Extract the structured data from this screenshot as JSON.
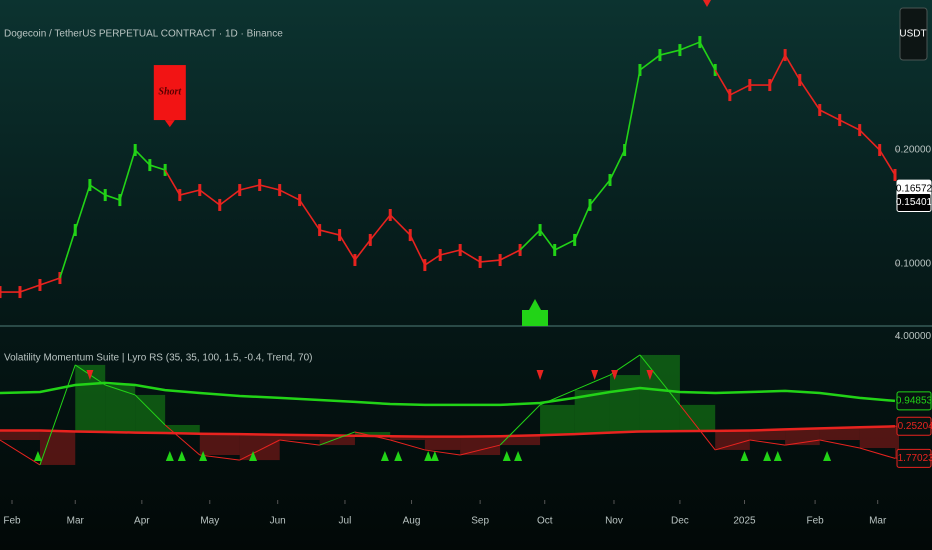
{
  "header": {
    "title": "Dogecoin / TetherUS PERPETUAL CONTRACT · 1D · Binance",
    "currency_button": "USDT"
  },
  "chart_data": [
    {
      "type": "candle-line",
      "x": [
        -0.18,
        0.12,
        0.42,
        0.72,
        0.95,
        1.17,
        1.4,
        1.62,
        1.85,
        2.07,
        2.3,
        2.52,
        2.82,
        3.12,
        3.42,
        3.72,
        4.02,
        4.32,
        4.62,
        4.92,
        5.15,
        5.38,
        5.68,
        5.98,
        6.2,
        6.43,
        6.73,
        7.03,
        7.33,
        7.63,
        7.93,
        8.15,
        8.45,
        8.68,
        8.98,
        9.2,
        9.43,
        9.73,
        10.03,
        10.33,
        10.56,
        10.78,
        11.08,
        11.38,
        11.61,
        11.83,
        12.13,
        12.43,
        12.73,
        13.03,
        13.26
      ],
      "values": [
        0.0754,
        0.0754,
        0.0816,
        0.0877,
        0.1298,
        0.1693,
        0.1605,
        0.1561,
        0.2,
        0.1868,
        0.1825,
        0.1605,
        0.1649,
        0.1518,
        0.1649,
        0.1693,
        0.1649,
        0.1561,
        0.1298,
        0.1254,
        0.1035,
        0.1211,
        0.143,
        0.1254,
        0.0991,
        0.1079,
        0.1123,
        0.1018,
        0.1035,
        0.1123,
        0.1298,
        0.1123,
        0.1211,
        0.1518,
        0.1737,
        0.2,
        0.2702,
        0.2833,
        0.2877,
        0.2947,
        0.2702,
        0.2482,
        0.257,
        0.257,
        0.2833,
        0.2614,
        0.2351,
        0.2263,
        0.2175,
        0.2,
        0.1781
      ],
      "colors": [
        "#e8231f",
        "#e8231f",
        "#e8231f",
        "#e8231f",
        "#22d317",
        "#22d317",
        "#22d317",
        "#22d317",
        "#22d317",
        "#22d317",
        "#22d317",
        "#e8231f",
        "#e8231f",
        "#e8231f",
        "#e8231f",
        "#e8231f",
        "#e8231f",
        "#e8231f",
        "#e8231f",
        "#e8231f",
        "#e8231f",
        "#e8231f",
        "#e8231f",
        "#e8231f",
        "#e8231f",
        "#e8231f",
        "#e8231f",
        "#e8231f",
        "#e8231f",
        "#e8231f",
        "#22d317",
        "#22d317",
        "#22d317",
        "#22d317",
        "#22d317",
        "#22d317",
        "#22d317",
        "#22d317",
        "#22d317",
        "#22d317",
        "#22d317",
        "#e8231f",
        "#e8231f",
        "#e8231f",
        "#e8231f",
        "#e8231f",
        "#e8231f",
        "#e8231f",
        "#e8231f",
        "#e8231f",
        "#e8231f"
      ],
      "xlim": [
        -0.18,
        13.26
      ],
      "ylim": [
        0.0465,
        0.3316
      ],
      "yticks": [
        {
          "value": 0.1,
          "label": "0.10000"
        },
        {
          "value": 0.2,
          "label": "0.20000"
        }
      ],
      "markers": [
        {
          "value": 0.16572,
          "label": "0.16572"
        },
        {
          "value": 0.15401,
          "label": "0.15401"
        }
      ],
      "annotation": {
        "text": "Short",
        "x": 2.37,
        "y": 0.2175
      }
    },
    {
      "type": "oscillator",
      "title": "Volatility Momentum Suite | Lyro RS (35, 35, 100, 1.5, -0.4, Trend, 70)",
      "x": [
        -0.18,
        0.42,
        0.95,
        1.4,
        1.85,
        2.3,
        2.82,
        3.42,
        4.02,
        4.62,
        5.15,
        5.68,
        6.2,
        6.73,
        7.33,
        7.93,
        8.45,
        8.98,
        9.43,
        10.03,
        10.56,
        11.08,
        11.61,
        12.13,
        12.73,
        13.26
      ],
      "series": [
        {
          "color": "#22d317",
          "values": [
            1.32,
            1.37,
            1.7,
            1.8,
            1.7,
            1.46,
            1.32,
            1.18,
            1.09,
            0.99,
            0.9,
            0.8,
            0.76,
            0.76,
            0.76,
            0.85,
            1.09,
            1.37,
            1.56,
            1.37,
            1.32,
            1.37,
            1.42,
            1.32,
            1.09,
            0.94853
          ],
          "last_label": "0.94853"
        },
        {
          "color": "#e8231f",
          "values": [
            -0.45,
            -0.45,
            -0.5,
            -0.52,
            -0.55,
            -0.57,
            -0.6,
            -0.62,
            -0.65,
            -0.68,
            -0.7,
            -0.72,
            -0.74,
            -0.74,
            -0.72,
            -0.68,
            -0.62,
            -0.55,
            -0.5,
            -0.48,
            -0.47,
            -0.45,
            -0.4,
            -0.35,
            -0.3,
            -0.25204
          ],
          "last_label": "-0.25204"
        },
        {
          "color": "#e8231f",
          "values": [
            -0.9,
            -2.08,
            2.65,
            1.7,
            1.23,
            -0.19,
            -1.61,
            -1.85,
            -0.9,
            -1.14,
            -0.52,
            -0.9,
            -1.37,
            -1.61,
            -1.14,
            0.76,
            1.46,
            2.17,
            3.12,
            0.76,
            -1.37,
            -0.9,
            -1.14,
            -0.9,
            -1.28,
            -1.77023
          ],
          "last_label": "-1.77023"
        }
      ],
      "buy_signals": [
        0.39,
        2.37,
        2.55,
        2.87,
        3.62,
        5.6,
        5.8,
        6.25,
        6.35,
        7.43,
        7.6,
        11.0,
        11.34,
        11.5,
        12.24
      ],
      "sell_signals": [
        1.17,
        7.93,
        8.75,
        9.05,
        9.58
      ],
      "up_color": "#22d317",
      "down_color": "#e8231f",
      "xlim": [
        -0.18,
        13.26
      ],
      "ylim": [
        -3.5,
        4.3
      ],
      "yticks": [
        {
          "value": 4,
          "label": "4.00000"
        }
      ],
      "xticks": [
        {
          "value": 0,
          "label": "Feb"
        },
        {
          "value": 0.95,
          "label": "Mar"
        },
        {
          "value": 1.95,
          "label": "Apr"
        },
        {
          "value": 2.97,
          "label": "May"
        },
        {
          "value": 3.99,
          "label": "Jun"
        },
        {
          "value": 5.0,
          "label": "Jul"
        },
        {
          "value": 6.0,
          "label": "Aug"
        },
        {
          "value": 7.03,
          "label": "Sep"
        },
        {
          "value": 8.0,
          "label": "Oct"
        },
        {
          "value": 9.04,
          "label": "Nov"
        },
        {
          "value": 10.03,
          "label": "Dec"
        },
        {
          "value": 11.0,
          "label": "2025"
        },
        {
          "value": 12.06,
          "label": "Feb"
        },
        {
          "value": 13.0,
          "label": "Mar"
        }
      ]
    }
  ]
}
